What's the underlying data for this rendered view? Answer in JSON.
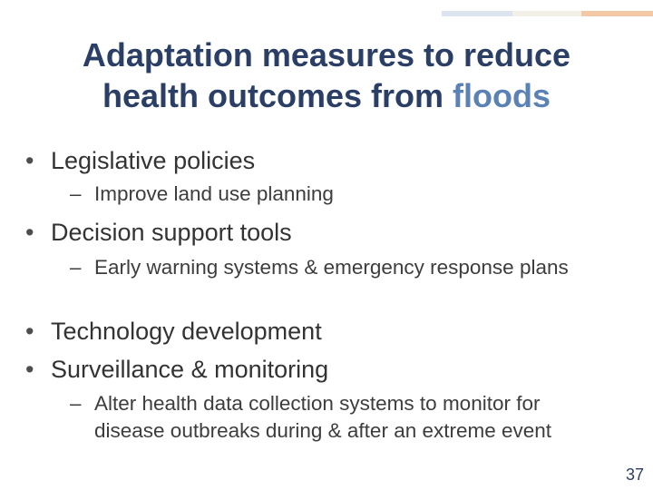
{
  "colors": {
    "title": "#2b3f66",
    "title_accent": "#5b82b4",
    "accent_bar_1": "#dce4f0",
    "accent_bar_2": "#f3f0e8",
    "accent_bar_3": "#f2c9a4"
  },
  "slide": {
    "title_line1": "Adaptation measures to reduce",
    "title_line2": "health outcomes from ",
    "title_highlight": "floods",
    "bullet_marker": "•",
    "sub_marker": "–",
    "bullets": [
      {
        "text": "Legislative policies",
        "sub": [
          "Improve land use planning"
        ]
      },
      {
        "text": "Decision support tools",
        "sub": [
          "Early warning systems & emergency response plans"
        ]
      },
      {
        "text": "Technology development",
        "sub": []
      },
      {
        "text": "Surveillance & monitoring",
        "sub": [
          "Alter health data collection systems to monitor for disease outbreaks during & after an extreme event"
        ]
      }
    ],
    "page_number": "37"
  }
}
